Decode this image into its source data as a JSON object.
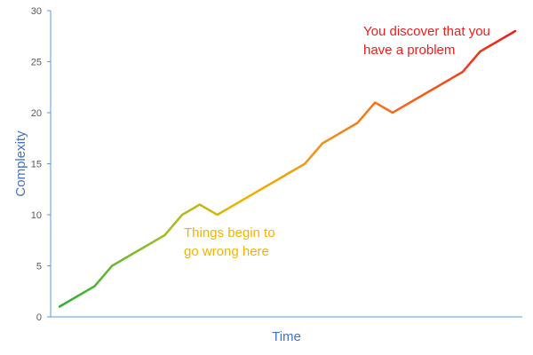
{
  "chart_data": {
    "type": "line",
    "title": "",
    "xlabel": "Time",
    "ylabel": "Complexity",
    "ylim": [
      0,
      30
    ],
    "yticks": [
      0,
      5,
      10,
      15,
      20,
      25,
      30
    ],
    "grid": false,
    "legend": "none",
    "series": [
      {
        "values": [
          1,
          2,
          3,
          5,
          6,
          7,
          8,
          10,
          11,
          10,
          11,
          12,
          13,
          14,
          15,
          17,
          18,
          19,
          21,
          20,
          21,
          22,
          23,
          24,
          26,
          27,
          28
        ]
      }
    ],
    "gradient_colors": [
      "#2eac3e",
      "#8fbe2c",
      "#f0b400",
      "#f28c1c",
      "#f25c1c",
      "#ee1c1c"
    ],
    "annotations": [
      {
        "text_lines": [
          "Things begin to",
          "go wrong here"
        ],
        "color": "#f0b400"
      },
      {
        "text_lines": [
          "You discover that you",
          "have a problem"
        ],
        "color": "#ee1c1c"
      }
    ],
    "axis_color": "#5b9bd5",
    "axis_title_color": "#4472c4"
  }
}
